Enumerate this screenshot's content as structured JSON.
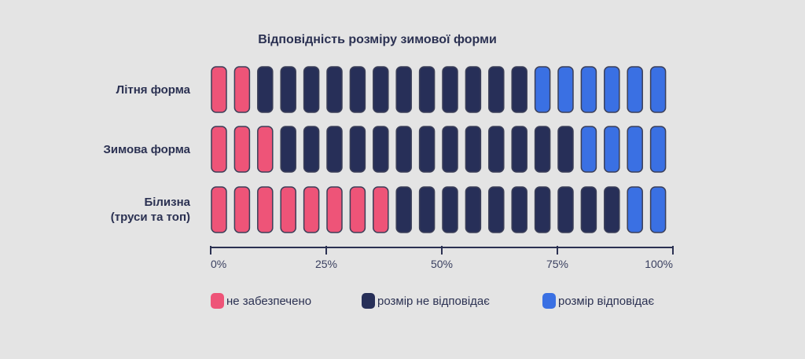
{
  "chart_data": {
    "type": "pictogram",
    "title": "Відповідність розміру зимової форми",
    "unit_percent": 5,
    "categories": [
      "Літня форма",
      "Зимова форма",
      "Білизна\n(труси та топ)"
    ],
    "series": [
      {
        "name": "не забезпечено",
        "color": "#ee5478",
        "values": [
          10,
          15,
          40
        ]
      },
      {
        "name": "розмір не відповідає",
        "color": "#272f58",
        "values": [
          60,
          65,
          50
        ]
      },
      {
        "name": "розмір відповідає",
        "color": "#3a70e3",
        "values": [
          30,
          20,
          10
        ]
      }
    ],
    "xlim": [
      0,
      100
    ],
    "xticks": [
      "0%",
      "25%",
      "50%",
      "75%",
      "100%"
    ],
    "legend": "bottom"
  }
}
